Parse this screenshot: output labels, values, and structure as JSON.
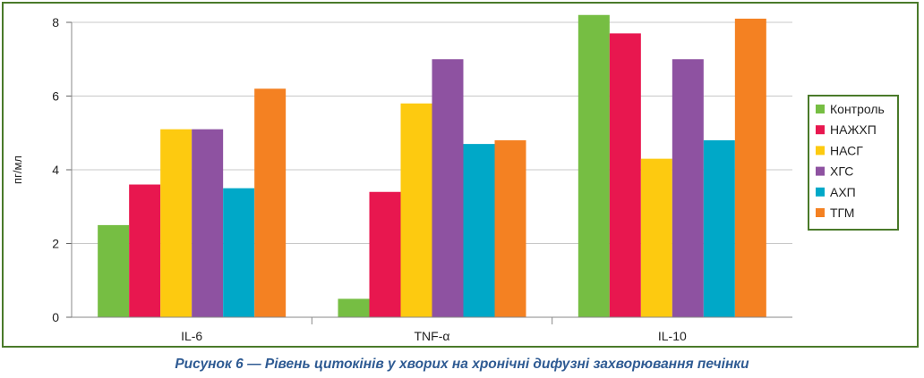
{
  "chart_data": {
    "type": "bar",
    "ylabel": "пг/мл",
    "ylim": [
      0,
      8
    ],
    "yticks": [
      0,
      2,
      4,
      6,
      8
    ],
    "categories": [
      "IL-6",
      "TNF-α",
      "IL-10"
    ],
    "series": [
      {
        "name": "Контроль",
        "color": "#76be43",
        "values": [
          2.5,
          0.5,
          8.2
        ]
      },
      {
        "name": "НАЖХП",
        "color": "#e8174f",
        "values": [
          3.6,
          3.4,
          7.7
        ]
      },
      {
        "name": "НАСГ",
        "color": "#fdca10",
        "values": [
          5.1,
          5.8,
          4.3
        ]
      },
      {
        "name": "ХГС",
        "color": "#8e52a1",
        "values": [
          5.1,
          7.0,
          7.0
        ]
      },
      {
        "name": "АХП",
        "color": "#00a8c8",
        "values": [
          3.5,
          4.7,
          4.8
        ]
      },
      {
        "name": "ТГМ",
        "color": "#f48122",
        "values": [
          6.2,
          4.8,
          8.1
        ]
      }
    ],
    "grid": true,
    "legend_position": "right"
  },
  "caption": "Рисунок 6 — Рівень цитокінів у хворих на хронічні дифузні захворювання печінки",
  "frame_color": "#4a7a2a",
  "caption_color": "#2f5b93"
}
